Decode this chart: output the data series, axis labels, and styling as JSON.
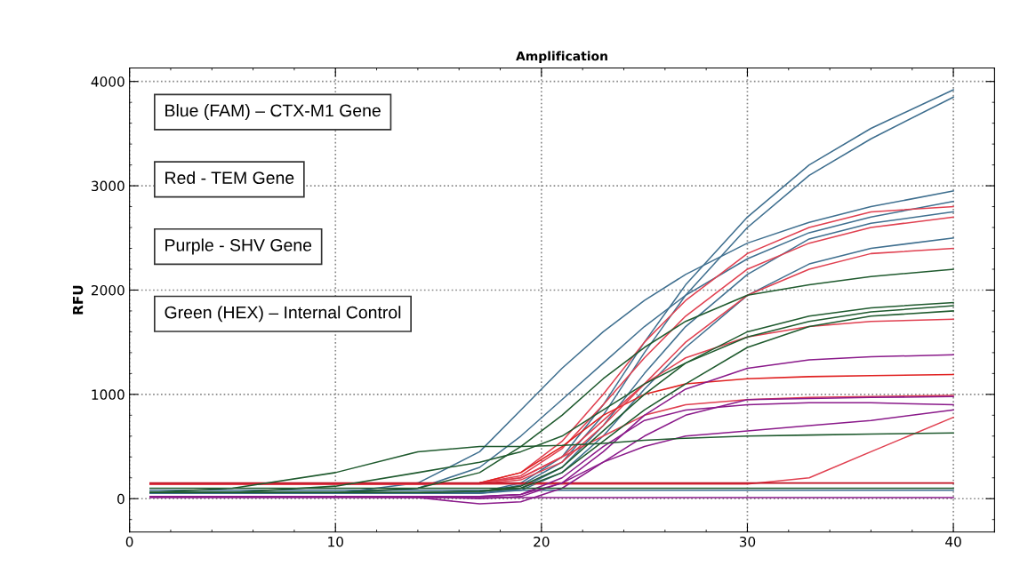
{
  "chart_data": {
    "type": "line",
    "title": "Amplification",
    "ylabel": "RFU",
    "annotations": [
      "Blue (FAM) – CTX-M1 Gene",
      "Red - TEM Gene",
      "Purple - SHV Gene",
      "Green (HEX) – Internal Control"
    ],
    "x": [
      1,
      5,
      10,
      14,
      17,
      19,
      21,
      23,
      25,
      27,
      30,
      33,
      36,
      40
    ],
    "xlim": [
      0,
      42
    ],
    "xticks": [
      0,
      10,
      20,
      30,
      40
    ],
    "ylim": [
      -320,
      4130
    ],
    "yticks": [
      0,
      1000,
      2000,
      3000,
      4000
    ],
    "grid": true,
    "legend": false,
    "marker": "none",
    "line_style": "solid",
    "series": [
      {
        "color": "#3f6f8f",
        "values": [
          50,
          50,
          50,
          50,
          60,
          150,
          400,
          900,
          1500,
          2050,
          2700,
          3200,
          3550,
          3920
        ]
      },
      {
        "color": "#3f6f8f",
        "values": [
          50,
          50,
          50,
          50,
          60,
          130,
          350,
          800,
          1400,
          1950,
          2600,
          3100,
          3450,
          3850
        ]
      },
      {
        "color": "#3f6f8f",
        "values": [
          50,
          50,
          50,
          150,
          450,
          850,
          1250,
          1600,
          1900,
          2150,
          2450,
          2650,
          2800,
          2950
        ]
      },
      {
        "color": "#3f6f8f",
        "values": [
          50,
          50,
          50,
          100,
          300,
          600,
          950,
          1300,
          1650,
          1950,
          2300,
          2550,
          2700,
          2850
        ]
      },
      {
        "color": "#3f6f8f",
        "values": [
          50,
          50,
          50,
          50,
          50,
          100,
          300,
          700,
          1200,
          1650,
          2150,
          2490,
          2640,
          2750
        ]
      },
      {
        "color": "#3f6f8f",
        "values": [
          50,
          50,
          50,
          50,
          50,
          80,
          250,
          600,
          1050,
          1450,
          1950,
          2250,
          2400,
          2500
        ]
      },
      {
        "color": "#3f6f8f",
        "values": [
          80,
          80,
          80,
          80,
          80,
          80,
          80,
          80,
          80,
          80,
          80,
          80,
          80,
          80
        ]
      },
      {
        "color": "#e04050",
        "values": [
          140,
          140,
          140,
          140,
          150,
          250,
          550,
          1000,
          1500,
          1900,
          2350,
          2600,
          2750,
          2800
        ]
      },
      {
        "color": "#e04050",
        "values": [
          140,
          140,
          140,
          140,
          150,
          220,
          480,
          900,
          1350,
          1750,
          2200,
          2450,
          2600,
          2700
        ]
      },
      {
        "color": "#e04050",
        "values": [
          140,
          140,
          140,
          140,
          150,
          200,
          400,
          750,
          1100,
          1350,
          1550,
          1650,
          1700,
          1720
        ]
      },
      {
        "color": "#e02020",
        "values": [
          140,
          140,
          140,
          140,
          150,
          250,
          500,
          800,
          1000,
          1100,
          1150,
          1170,
          1180,
          1190
        ]
      },
      {
        "color": "#e04050",
        "values": [
          140,
          140,
          140,
          140,
          150,
          200,
          400,
          600,
          800,
          900,
          950,
          970,
          980,
          990
        ]
      },
      {
        "color": "#e04050",
        "values": [
          140,
          140,
          140,
          140,
          140,
          140,
          140,
          140,
          140,
          140,
          140,
          200,
          450,
          780
        ]
      },
      {
        "color": "#e04050",
        "values": [
          140,
          140,
          140,
          140,
          140,
          180,
          350,
          700,
          1100,
          1500,
          1950,
          2200,
          2350,
          2400
        ]
      },
      {
        "color": "#c01020",
        "values": [
          150,
          150,
          150,
          150,
          150,
          150,
          150,
          150,
          150,
          150,
          150,
          150,
          150,
          150
        ]
      },
      {
        "color": "#8a1a8a",
        "values": [
          20,
          20,
          20,
          20,
          0,
          20,
          150,
          450,
          800,
          1050,
          1250,
          1330,
          1360,
          1380
        ]
      },
      {
        "color": "#8a1a8a",
        "values": [
          20,
          20,
          20,
          10,
          -50,
          -30,
          100,
          350,
          600,
          800,
          950,
          960,
          970,
          980
        ]
      },
      {
        "color": "#8a1a8a",
        "values": [
          20,
          20,
          20,
          20,
          20,
          40,
          150,
          350,
          500,
          600,
          650,
          700,
          750,
          850
        ]
      },
      {
        "color": "#8a1a8a",
        "values": [
          20,
          20,
          20,
          20,
          20,
          40,
          200,
          500,
          750,
          850,
          900,
          920,
          920,
          900
        ]
      },
      {
        "color": "#8a1a8a",
        "values": [
          10,
          10,
          10,
          10,
          10,
          10,
          10,
          10,
          10,
          10,
          10,
          10,
          10,
          10
        ]
      },
      {
        "color": "#1f5a2e",
        "values": [
          60,
          100,
          250,
          450,
          500,
          500,
          510,
          530,
          560,
          580,
          600,
          610,
          620,
          630
        ]
      },
      {
        "color": "#1f5a2e",
        "values": [
          60,
          60,
          120,
          250,
          350,
          450,
          600,
          850,
          1100,
          1300,
          1550,
          1700,
          1790,
          1850
        ]
      },
      {
        "color": "#1f5a2e",
        "values": [
          60,
          60,
          60,
          60,
          70,
          120,
          300,
          650,
          1000,
          1300,
          1600,
          1750,
          1830,
          1880
        ]
      },
      {
        "color": "#1f5a2e",
        "values": [
          60,
          60,
          60,
          60,
          70,
          100,
          250,
          550,
          850,
          1100,
          1450,
          1650,
          1750,
          1800
        ]
      },
      {
        "color": "#1f5a2e",
        "values": [
          60,
          60,
          60,
          100,
          250,
          500,
          800,
          1150,
          1450,
          1700,
          1950,
          2050,
          2130,
          2200
        ]
      },
      {
        "color": "#1f5a2e",
        "values": [
          100,
          100,
          100,
          100,
          100,
          100,
          100,
          100,
          100,
          100,
          100,
          100,
          100,
          100
        ]
      }
    ]
  }
}
